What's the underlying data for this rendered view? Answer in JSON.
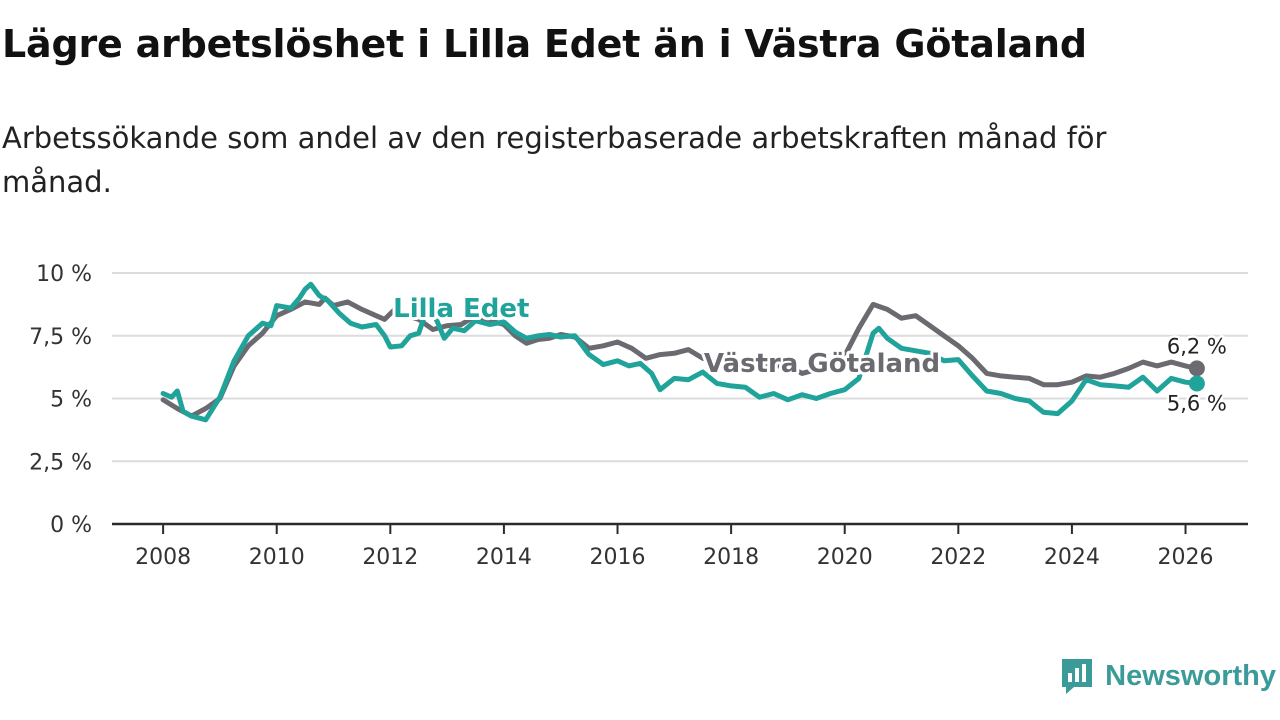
{
  "header": {
    "title": "Lägre arbetslöshet i Lilla Edet än i Västra Götaland",
    "subtitle": "Arbetssökande som andel av den registerbaserade arbetskraften månad för månad."
  },
  "brand": {
    "name": "Newsworthy",
    "icon": "newsworthy-logo-icon",
    "color": "#3a9b98"
  },
  "chart_data": {
    "type": "line",
    "title": "Lägre arbetslöshet i Lilla Edet än i Västra Götaland",
    "subtitle": "Arbetssökande som andel av den registerbaserade arbetskraften månad för månad.",
    "xlabel": "",
    "ylabel": "",
    "xlim": [
      2007.1,
      2027.1
    ],
    "ylim": [
      0,
      10
    ],
    "grid": true,
    "x_ticks": [
      2008,
      2010,
      2012,
      2014,
      2016,
      2018,
      2020,
      2022,
      2024,
      2026
    ],
    "x_tick_labels": [
      "2008",
      "2010",
      "2012",
      "2014",
      "2016",
      "2018",
      "2020",
      "2022",
      "2024",
      "2026"
    ],
    "y_ticks": [
      0,
      2.5,
      5,
      7.5,
      10
    ],
    "y_tick_labels": [
      "0 %",
      "2,5 %",
      "5 %",
      "7,5 %",
      "10 %"
    ],
    "series": [
      {
        "name": "Västra Götaland",
        "color": "#6b6a70",
        "end_label": "6,2 %",
        "label_position": "middle",
        "points": [
          [
            2008.0,
            4.95
          ],
          [
            2008.25,
            4.6
          ],
          [
            2008.5,
            4.3
          ],
          [
            2008.75,
            4.6
          ],
          [
            2009.0,
            5.0
          ],
          [
            2009.25,
            6.3
          ],
          [
            2009.5,
            7.1
          ],
          [
            2009.75,
            7.6
          ],
          [
            2010.0,
            8.3
          ],
          [
            2010.25,
            8.55
          ],
          [
            2010.5,
            8.85
          ],
          [
            2010.75,
            8.75
          ],
          [
            2010.85,
            9.0
          ],
          [
            2011.0,
            8.7
          ],
          [
            2011.25,
            8.85
          ],
          [
            2011.5,
            8.55
          ],
          [
            2011.75,
            8.3
          ],
          [
            2011.9,
            8.15
          ],
          [
            2012.1,
            8.6
          ],
          [
            2012.3,
            8.3
          ],
          [
            2012.5,
            8.15
          ],
          [
            2012.75,
            7.75
          ],
          [
            2013.0,
            7.9
          ],
          [
            2013.25,
            7.95
          ],
          [
            2013.5,
            8.3
          ],
          [
            2013.75,
            8.1
          ],
          [
            2014.0,
            7.95
          ],
          [
            2014.2,
            7.5
          ],
          [
            2014.4,
            7.2
          ],
          [
            2014.6,
            7.35
          ],
          [
            2014.8,
            7.4
          ],
          [
            2015.0,
            7.55
          ],
          [
            2015.25,
            7.45
          ],
          [
            2015.5,
            7.0
          ],
          [
            2015.75,
            7.1
          ],
          [
            2016.0,
            7.25
          ],
          [
            2016.25,
            7.0
          ],
          [
            2016.5,
            6.6
          ],
          [
            2016.75,
            6.75
          ],
          [
            2017.0,
            6.8
          ],
          [
            2017.25,
            6.95
          ],
          [
            2017.5,
            6.6
          ],
          [
            2017.75,
            6.5
          ],
          [
            2018.0,
            6.55
          ],
          [
            2018.25,
            6.4
          ],
          [
            2018.5,
            6.35
          ],
          [
            2018.75,
            6.3
          ],
          [
            2019.0,
            6.3
          ],
          [
            2019.25,
            6.0
          ],
          [
            2019.5,
            6.15
          ],
          [
            2019.75,
            6.3
          ],
          [
            2020.0,
            6.7
          ],
          [
            2020.25,
            7.8
          ],
          [
            2020.5,
            8.75
          ],
          [
            2020.75,
            8.55
          ],
          [
            2021.0,
            8.2
          ],
          [
            2021.25,
            8.3
          ],
          [
            2021.5,
            7.9
          ],
          [
            2021.75,
            7.5
          ],
          [
            2022.0,
            7.1
          ],
          [
            2022.25,
            6.6
          ],
          [
            2022.5,
            6.0
          ],
          [
            2022.75,
            5.9
          ],
          [
            2023.0,
            5.85
          ],
          [
            2023.25,
            5.8
          ],
          [
            2023.5,
            5.55
          ],
          [
            2023.75,
            5.55
          ],
          [
            2024.0,
            5.65
          ],
          [
            2024.25,
            5.9
          ],
          [
            2024.5,
            5.85
          ],
          [
            2024.75,
            6.0
          ],
          [
            2025.0,
            6.2
          ],
          [
            2025.25,
            6.45
          ],
          [
            2025.5,
            6.3
          ],
          [
            2025.75,
            6.45
          ],
          [
            2026.0,
            6.3
          ],
          [
            2026.2,
            6.2
          ]
        ]
      },
      {
        "name": "Lilla Edet",
        "color": "#1fa39a",
        "end_label": "5,6 %",
        "label_position": "upper-left",
        "points": [
          [
            2008.0,
            5.2
          ],
          [
            2008.15,
            5.05
          ],
          [
            2008.25,
            5.3
          ],
          [
            2008.35,
            4.5
          ],
          [
            2008.5,
            4.3
          ],
          [
            2008.75,
            4.15
          ],
          [
            2009.0,
            5.05
          ],
          [
            2009.25,
            6.5
          ],
          [
            2009.5,
            7.5
          ],
          [
            2009.75,
            8.0
          ],
          [
            2009.9,
            7.9
          ],
          [
            2010.0,
            8.7
          ],
          [
            2010.25,
            8.6
          ],
          [
            2010.4,
            9.0
          ],
          [
            2010.5,
            9.35
          ],
          [
            2010.6,
            9.55
          ],
          [
            2010.75,
            9.1
          ],
          [
            2010.9,
            8.9
          ],
          [
            2011.1,
            8.4
          ],
          [
            2011.3,
            8.0
          ],
          [
            2011.5,
            7.85
          ],
          [
            2011.75,
            7.95
          ],
          [
            2011.9,
            7.5
          ],
          [
            2012.0,
            7.05
          ],
          [
            2012.2,
            7.1
          ],
          [
            2012.35,
            7.5
          ],
          [
            2012.5,
            7.6
          ],
          [
            2012.65,
            8.6
          ],
          [
            2012.8,
            8.2
          ],
          [
            2012.95,
            7.4
          ],
          [
            2013.1,
            7.8
          ],
          [
            2013.3,
            7.7
          ],
          [
            2013.5,
            8.1
          ],
          [
            2013.75,
            7.95
          ],
          [
            2014.0,
            8.05
          ],
          [
            2014.2,
            7.65
          ],
          [
            2014.4,
            7.4
          ],
          [
            2014.6,
            7.5
          ],
          [
            2014.8,
            7.55
          ],
          [
            2015.0,
            7.45
          ],
          [
            2015.25,
            7.5
          ],
          [
            2015.5,
            6.75
          ],
          [
            2015.75,
            6.35
          ],
          [
            2016.0,
            6.5
          ],
          [
            2016.2,
            6.3
          ],
          [
            2016.4,
            6.4
          ],
          [
            2016.6,
            6.0
          ],
          [
            2016.75,
            5.35
          ],
          [
            2017.0,
            5.8
          ],
          [
            2017.25,
            5.75
          ],
          [
            2017.5,
            6.05
          ],
          [
            2017.75,
            5.6
          ],
          [
            2018.0,
            5.5
          ],
          [
            2018.25,
            5.45
          ],
          [
            2018.5,
            5.05
          ],
          [
            2018.75,
            5.2
          ],
          [
            2019.0,
            4.95
          ],
          [
            2019.25,
            5.15
          ],
          [
            2019.5,
            5.0
          ],
          [
            2019.75,
            5.2
          ],
          [
            2020.0,
            5.35
          ],
          [
            2020.25,
            5.8
          ],
          [
            2020.5,
            7.6
          ],
          [
            2020.6,
            7.8
          ],
          [
            2020.75,
            7.4
          ],
          [
            2021.0,
            7.0
          ],
          [
            2021.25,
            6.9
          ],
          [
            2021.5,
            6.8
          ],
          [
            2021.75,
            6.5
          ],
          [
            2022.0,
            6.55
          ],
          [
            2022.25,
            5.9
          ],
          [
            2022.5,
            5.3
          ],
          [
            2022.75,
            5.2
          ],
          [
            2023.0,
            5.0
          ],
          [
            2023.25,
            4.9
          ],
          [
            2023.5,
            4.45
          ],
          [
            2023.75,
            4.4
          ],
          [
            2024.0,
            4.9
          ],
          [
            2024.25,
            5.75
          ],
          [
            2024.5,
            5.55
          ],
          [
            2024.75,
            5.5
          ],
          [
            2025.0,
            5.45
          ],
          [
            2025.25,
            5.85
          ],
          [
            2025.5,
            5.3
          ],
          [
            2025.75,
            5.8
          ],
          [
            2026.0,
            5.65
          ],
          [
            2026.2,
            5.6
          ]
        ]
      }
    ]
  }
}
